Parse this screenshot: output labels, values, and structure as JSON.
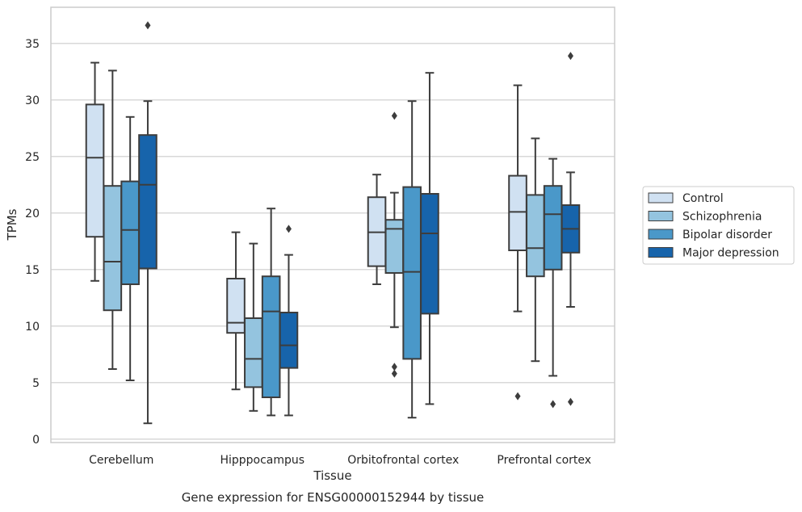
{
  "chart_data": {
    "type": "boxplot",
    "title": "",
    "caption": "Gene expression for ENSG00000152944 by tissue",
    "xlabel": "Tissue",
    "ylabel": "TPMs",
    "ylim": [
      -0.3,
      38.2
    ],
    "yticks": [
      0,
      5,
      10,
      15,
      20,
      25,
      30,
      35
    ],
    "grid": "horizontal",
    "legend_position": "right",
    "categories": [
      "Cerebellum",
      "Hipppocampus",
      "Orbitofrontal cortex",
      "Prefrontal cortex"
    ],
    "series": [
      {
        "name": "Control",
        "color": "#d0e1f2",
        "boxes": [
          {
            "whislo": 14.0,
            "q1": 17.9,
            "med": 24.9,
            "q3": 29.6,
            "whishi": 33.3,
            "fliers": []
          },
          {
            "whislo": 4.4,
            "q1": 9.4,
            "med": 10.3,
            "q3": 14.2,
            "whishi": 18.3,
            "fliers": []
          },
          {
            "whislo": 13.7,
            "q1": 15.3,
            "med": 18.3,
            "q3": 21.4,
            "whishi": 23.4,
            "fliers": []
          },
          {
            "whislo": 11.3,
            "q1": 16.7,
            "med": 20.1,
            "q3": 23.3,
            "whishi": 31.3,
            "fliers": [
              3.8
            ]
          }
        ]
      },
      {
        "name": "Schizophrenia",
        "color": "#94c4df",
        "boxes": [
          {
            "whislo": 6.2,
            "q1": 11.4,
            "med": 15.7,
            "q3": 22.4,
            "whishi": 32.6,
            "fliers": []
          },
          {
            "whislo": 2.5,
            "q1": 4.6,
            "med": 7.1,
            "q3": 10.7,
            "whishi": 17.3,
            "fliers": []
          },
          {
            "whislo": 9.9,
            "q1": 14.7,
            "med": 18.6,
            "q3": 19.4,
            "whishi": 21.8,
            "fliers": [
              28.6,
              6.4,
              5.8
            ]
          },
          {
            "whislo": 6.9,
            "q1": 14.4,
            "med": 16.9,
            "q3": 21.6,
            "whishi": 26.6,
            "fliers": []
          }
        ]
      },
      {
        "name": "Bipolar disorder",
        "color": "#4a98c9",
        "boxes": [
          {
            "whislo": 5.2,
            "q1": 13.7,
            "med": 18.5,
            "q3": 22.8,
            "whishi": 28.5,
            "fliers": []
          },
          {
            "whislo": 2.1,
            "q1": 3.7,
            "med": 11.3,
            "q3": 14.4,
            "whishi": 20.4,
            "fliers": []
          },
          {
            "whislo": 1.9,
            "q1": 7.1,
            "med": 14.8,
            "q3": 22.3,
            "whishi": 29.9,
            "fliers": []
          },
          {
            "whislo": 5.6,
            "q1": 15.0,
            "med": 19.9,
            "q3": 22.4,
            "whishi": 24.8,
            "fliers": [
              3.1
            ]
          }
        ]
      },
      {
        "name": "Major depression",
        "color": "#1764ab",
        "boxes": [
          {
            "whislo": 1.4,
            "q1": 15.1,
            "med": 22.5,
            "q3": 26.9,
            "whishi": 29.9,
            "fliers": [
              36.6
            ]
          },
          {
            "whislo": 2.1,
            "q1": 6.3,
            "med": 8.3,
            "q3": 11.2,
            "whishi": 16.3,
            "fliers": [
              18.6
            ]
          },
          {
            "whislo": 3.1,
            "q1": 11.1,
            "med": 18.2,
            "q3": 21.7,
            "whishi": 32.4,
            "fliers": []
          },
          {
            "whislo": 11.7,
            "q1": 16.5,
            "med": 18.6,
            "q3": 20.7,
            "whishi": 23.6,
            "fliers": [
              33.9,
              3.3
            ]
          }
        ]
      }
    ]
  }
}
